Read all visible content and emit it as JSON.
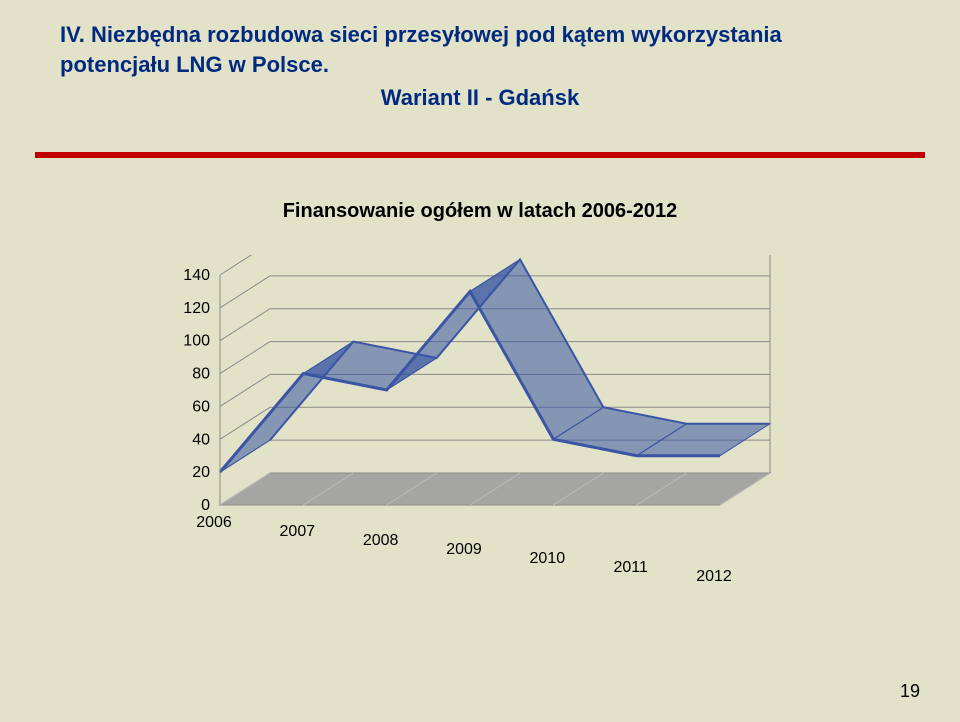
{
  "heading": {
    "line1": "IV. Niezbędna rozbudowa sieci przesyłowej pod kątem wykorzystania",
    "line2": "potencjału LNG w Polsce.",
    "line3": "Wariant II - Gdańsk",
    "color": "#002a7f",
    "fontsize": 22
  },
  "rule": {
    "color": "#c00000"
  },
  "chart": {
    "title": "Finansowanie ogółem w latach 2006-2012",
    "title_fontsize": 20,
    "type": "3d-line",
    "categories": [
      "2006",
      "2007",
      "2008",
      "2009",
      "2010",
      "2011",
      "2012"
    ],
    "values": [
      20,
      80,
      70,
      130,
      40,
      30,
      30
    ],
    "ylim": [
      0,
      140
    ],
    "ytick_step": 20,
    "yticks": [
      0,
      20,
      40,
      60,
      80,
      100,
      120,
      140
    ],
    "line_color": "#3955a4",
    "line_width": 3,
    "grid_color": "#8a8a8a",
    "wall_color": "#e2e2c8",
    "floor_color": "#9a9a9a",
    "axis_label_fontsize": 16,
    "category_label_fontsize": 16,
    "depth_dx": 50,
    "depth_dy": -32
  },
  "page_number": "19",
  "background_color": "#e2e2c8"
}
